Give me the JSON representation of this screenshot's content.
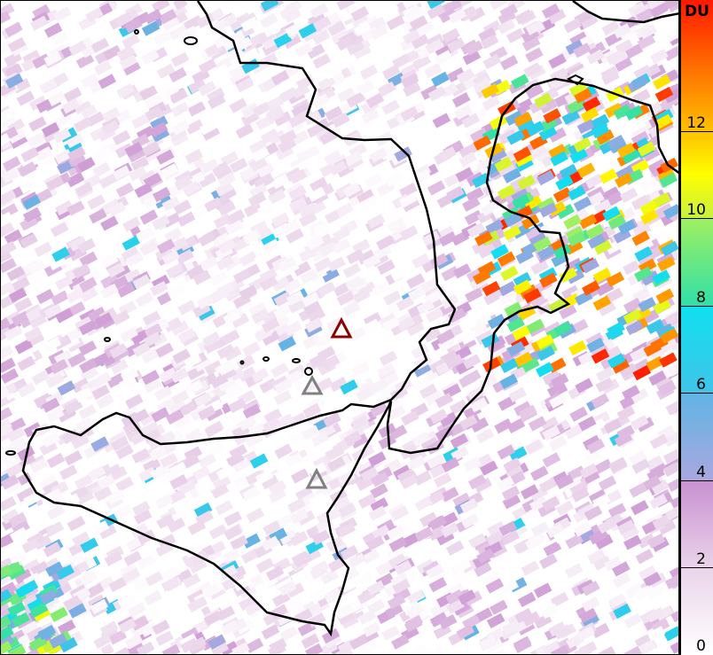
{
  "colorbar": {
    "title": "DU",
    "range": [
      0,
      15
    ],
    "ticks": [
      {
        "value": 0,
        "label": "0"
      },
      {
        "value": 2,
        "label": "2"
      },
      {
        "value": 4,
        "label": "4"
      },
      {
        "value": 6,
        "label": "6"
      },
      {
        "value": 8,
        "label": "8"
      },
      {
        "value": 10,
        "label": "10"
      },
      {
        "value": 12,
        "label": "12"
      }
    ],
    "colors": [
      {
        "value": 0,
        "color": "#ffffff"
      },
      {
        "value": 2,
        "color": "#ead4ea"
      },
      {
        "value": 4,
        "color": "#c890d0"
      },
      {
        "value": 4.01,
        "color": "#a8a8e0"
      },
      {
        "value": 6,
        "color": "#60b4e4"
      },
      {
        "value": 6.01,
        "color": "#40c4e8"
      },
      {
        "value": 8,
        "color": "#10e0f0"
      },
      {
        "value": 8.01,
        "color": "#30e0a8"
      },
      {
        "value": 10,
        "color": "#a0f060"
      },
      {
        "value": 10.01,
        "color": "#c8f040"
      },
      {
        "value": 11,
        "color": "#ffff00"
      },
      {
        "value": 12,
        "color": "#ffc000"
      },
      {
        "value": 15,
        "color": "#ff1800"
      }
    ]
  },
  "markers": [
    {
      "type": "triangle",
      "color": "#8b0000"
    },
    {
      "type": "triangle",
      "color": "#808080"
    },
    {
      "type": "triangle",
      "color": "#808080"
    }
  ],
  "coastline_color": "#000000"
}
